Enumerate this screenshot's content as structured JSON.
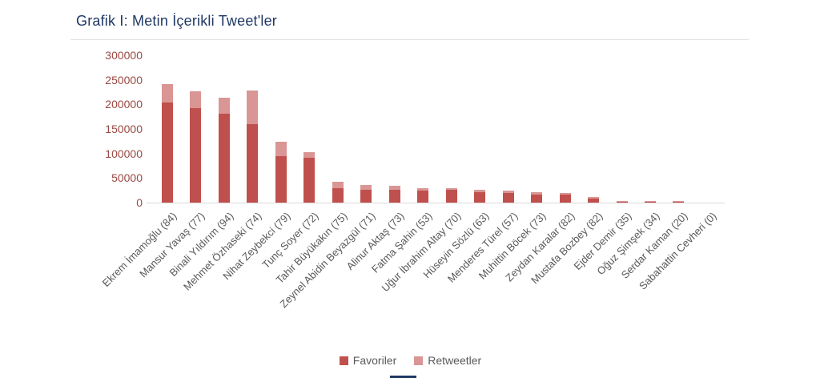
{
  "page": {
    "title": "Grafik I: Metin İçerikli Tweet'ler"
  },
  "colors": {
    "title_text": "#1f3864",
    "favoriler": "#c0504d",
    "retweetler": "#d99694",
    "value_axis_labels": "#9a4a44",
    "category_axis_labels": "#595959",
    "axis_line": "#d9d9d9",
    "divider_line": "#e2e2e2"
  },
  "legend": {
    "items": [
      {
        "label": "Favoriler",
        "color": "#c0504d"
      },
      {
        "label": "Retweetler",
        "color": "#d99694"
      }
    ],
    "position": "bottom-center"
  },
  "chart_data": {
    "type": "bar",
    "stacked": true,
    "title": "Grafik I: Metin İçerikli Tweet'ler",
    "xlabel": "",
    "ylabel": "",
    "ylim": [
      0,
      300000
    ],
    "ytick_interval": 50000,
    "yticks": [
      0,
      50000,
      100000,
      150000,
      200000,
      250000,
      300000
    ],
    "grid": false,
    "legend_position": "bottom",
    "categories": [
      "Ekrem İmamoğlu (84)",
      "Mansur Yavaş (77)",
      "Binali Yıldırım (94)",
      "Mehmet Özhaseki (74)",
      "Nihat Zeybekci (79)",
      "Tunç Soyer (72)",
      "Tahir Büyükakın (75)",
      "Zeynel Abidin Beyazgül (71)",
      "Alinur Aktaş (73)",
      "Fatma Şahin (53)",
      "Uğur İbrahim Altay (70)",
      "Hüseyin Sözlü (63)",
      "Menderes Türel (57)",
      "Muhittin Böcek (73)",
      "Zeydan Karalar (82)",
      "Mustafa Bozbey (82)",
      "Ejder Demir (35)",
      "Oğuz Şimşek (34)",
      "Serdar Kaman (20)",
      "Sabahattin Cevheri (0)"
    ],
    "series": [
      {
        "name": "Favoriler",
        "color": "#c0504d",
        "values": [
          203000,
          192000,
          181000,
          160000,
          95000,
          91000,
          29000,
          26000,
          26000,
          25000,
          26000,
          21000,
          20000,
          17000,
          16000,
          8000,
          1000,
          1000,
          1000,
          0
        ]
      },
      {
        "name": "Retweetler",
        "color": "#d99694",
        "values": [
          38000,
          35000,
          33000,
          69000,
          29000,
          11000,
          13000,
          10000,
          8000,
          4000,
          4000,
          5000,
          4000,
          5000,
          4000,
          4000,
          3000,
          3000,
          3000,
          0
        ]
      }
    ]
  }
}
